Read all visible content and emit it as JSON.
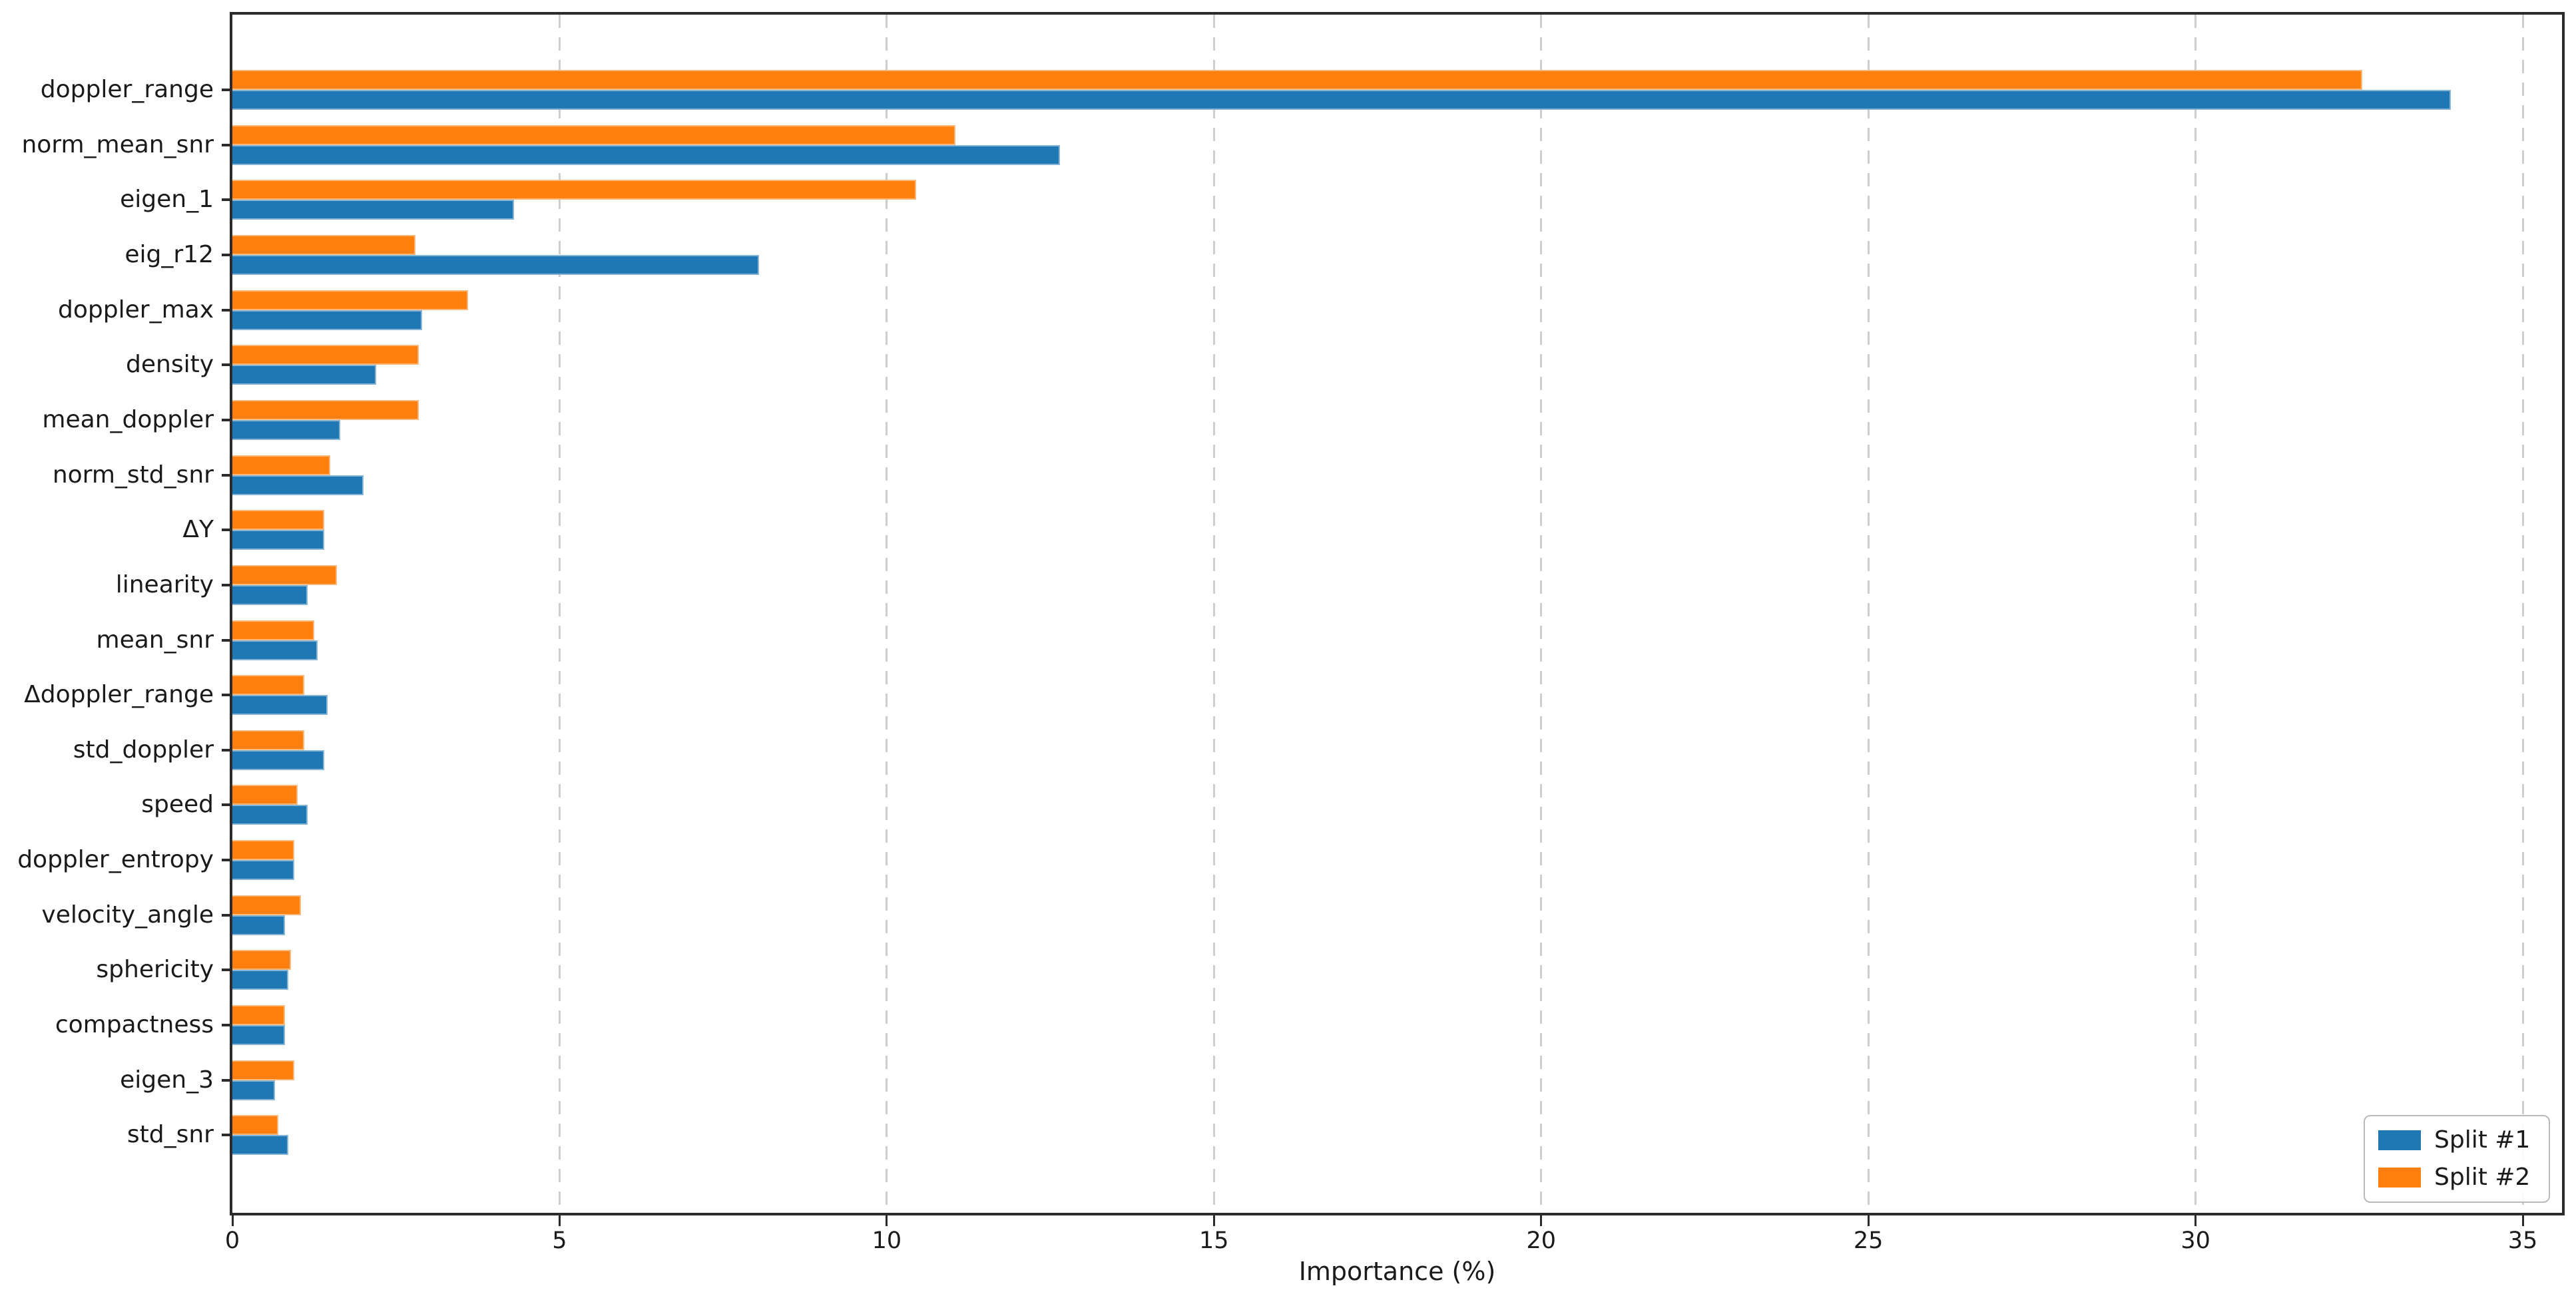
{
  "figure": {
    "background": "#ffffff",
    "spine_color": "#2b2b2b",
    "grid_color": "#cdcdcd",
    "text_color": "#1a1a1a"
  },
  "chart_data": {
    "type": "bar",
    "orientation": "horizontal",
    "title": "",
    "xlabel": "Importance (%)",
    "ylabel": "",
    "categories": [
      "doppler_range",
      "norm_mean_snr",
      "eigen_1",
      "eig_r12",
      "doppler_max",
      "density",
      "mean_doppler",
      "norm_std_snr",
      "ΔY",
      "linearity",
      "mean_snr",
      "Δdoppler_range",
      "std_doppler",
      "speed",
      "doppler_entropy",
      "velocity_angle",
      "sphericity",
      "compactness",
      "eigen_3",
      "std_snr"
    ],
    "series": [
      {
        "name": "Split #1",
        "color": "#1f77b4",
        "values": [
          33.9,
          12.65,
          4.3,
          8.05,
          2.9,
          2.2,
          1.65,
          2.0,
          1.4,
          1.15,
          1.3,
          1.45,
          1.4,
          1.15,
          0.95,
          0.8,
          0.85,
          0.8,
          0.65,
          0.85
        ]
      },
      {
        "name": "Split #2",
        "color": "#ff7f0e",
        "values": [
          32.55,
          11.05,
          10.45,
          2.8,
          3.6,
          2.85,
          2.85,
          1.5,
          1.4,
          1.6,
          1.25,
          1.1,
          1.1,
          1.0,
          0.95,
          1.05,
          0.9,
          0.8,
          0.95,
          0.7
        ]
      }
    ],
    "xlim": [
      0,
      35.6
    ],
    "xticks": [
      0,
      5,
      10,
      15,
      20,
      25,
      30,
      35
    ],
    "grid": true,
    "grid_axis": "x",
    "grid_style": "dashed",
    "legend_position": "lower right",
    "group_order": "Split #2 bar drawn above Split #1 bar within each category"
  }
}
